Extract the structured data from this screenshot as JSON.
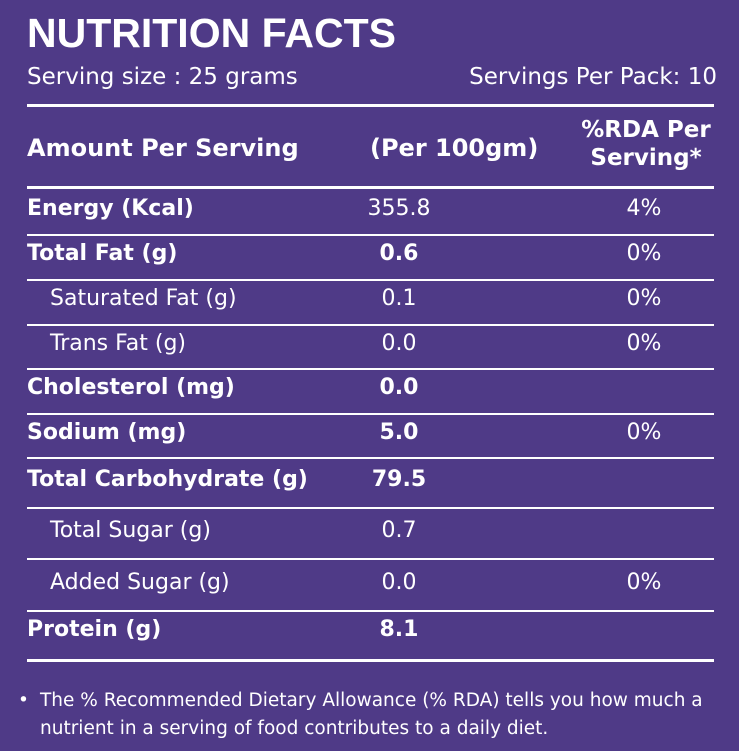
{
  "title": "NUTRITION FACTS",
  "serving_size": "Serving size : 25 grams",
  "servings_per_pack": "Servings Per Pack: 10",
  "header": {
    "col1": "Amount Per Serving",
    "col2": "(Per 100gm)",
    "col3_line1": "%RDA Per",
    "col3_line2": "Serving*"
  },
  "rows": [
    {
      "name": "Energy (Kcal)",
      "value": "355.8",
      "rda": "4%"
    },
    {
      "name": "Total Fat (g)",
      "value": "0.6",
      "rda": "0%"
    },
    {
      "name": "Saturated Fat (g)",
      "value": "0.1",
      "rda": "0%"
    },
    {
      "name": "Trans Fat (g)",
      "value": "0.0",
      "rda": "0%"
    },
    {
      "name": "Cholesterol (mg)",
      "value": "0.0",
      "rda": ""
    },
    {
      "name": "Sodium  (mg)",
      "value": "5.0",
      "rda": "0%"
    },
    {
      "name": "Total Carbohydrate (g)",
      "value": "79.5",
      "rda": ""
    },
    {
      "name": "Total Sugar (g)",
      "value": "0.7",
      "rda": ""
    },
    {
      "name": "Added Sugar (g)",
      "value": "0.0",
      "rda": "0%"
    },
    {
      "name": "Protein (g)",
      "value": "8.1",
      "rda": ""
    }
  ],
  "footnote": {
    "bullet": "•",
    "text": "The % Recommended Dietary Allowance (% RDA) tells you how much a nutrient in a serving of food contributes to a daily diet."
  },
  "colors": {
    "background": "#4f3a87",
    "text": "#ffffff"
  }
}
